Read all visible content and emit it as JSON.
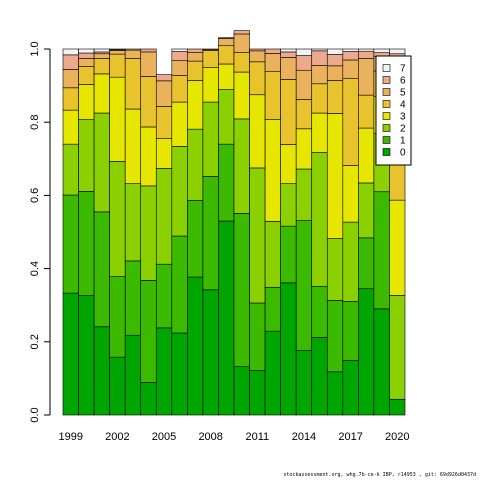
{
  "chart_data": {
    "type": "bar",
    "stacked": true,
    "title": "",
    "xlabel": "",
    "ylabel": "",
    "ylim": [
      0,
      1
    ],
    "y_ticks": [
      "0.0",
      "0.2",
      "0.4",
      "0.6",
      "0.8",
      "1.0"
    ],
    "x_tick_labels": [
      "1999",
      "2002",
      "2005",
      "2008",
      "2011",
      "2014",
      "2017",
      "2020"
    ],
    "categories": [
      "1999",
      "2000",
      "2001",
      "2002",
      "2003",
      "2004",
      "2005",
      "2006",
      "2007",
      "2008",
      "2009",
      "2010",
      "2011",
      "2012",
      "2013",
      "2014",
      "2015",
      "2016",
      "2017",
      "2018",
      "2019",
      "2020"
    ],
    "legend_position": "top-right",
    "series": [
      {
        "name": "0",
        "color": "#00a600",
        "values": [
          0.333,
          0.326,
          0.241,
          0.158,
          0.218,
          0.089,
          0.238,
          0.224,
          0.377,
          0.342,
          0.53,
          0.132,
          0.122,
          0.229,
          0.361,
          0.176,
          0.212,
          0.118,
          0.149,
          0.345,
          0.29,
          0.043
        ]
      },
      {
        "name": "1",
        "color": "#3bba00",
        "values": [
          0.268,
          0.285,
          0.314,
          0.22,
          0.203,
          0.279,
          0.174,
          0.265,
          0.209,
          0.31,
          0.21,
          0.419,
          0.184,
          0.12,
          0.155,
          0.355,
          0.139,
          0.195,
          0.161,
          0.139,
          0.32,
          0.0
        ]
      },
      {
        "name": "2",
        "color": "#8bd000",
        "values": [
          0.139,
          0.196,
          0.27,
          0.315,
          0.211,
          0.258,
          0.262,
          0.245,
          0.195,
          0.203,
          0.149,
          0.258,
          0.369,
          0.18,
          0.116,
          0.141,
          0.366,
          0.169,
          0.217,
          0.15,
          0.16,
          0.284
        ]
      },
      {
        "name": "3",
        "color": "#e6e600",
        "values": [
          0.093,
          0.096,
          0.107,
          0.23,
          0.204,
          0.161,
          0.081,
          0.121,
          0.133,
          0.094,
          0.07,
          0.128,
          0.2,
          0.278,
          0.107,
          0.11,
          0.108,
          0.342,
          0.155,
          0.15,
          0.1,
          0.26
        ]
      },
      {
        "name": "4",
        "color": "#e8c32e",
        "values": [
          0.061,
          0.049,
          0.042,
          0.063,
          0.138,
          0.138,
          0.088,
          0.073,
          0.053,
          0.047,
          0.05,
          0.054,
          0.09,
          0.131,
          0.178,
          0.08,
          0.08,
          0.09,
          0.238,
          0.09,
          0.07,
          0.16
        ]
      },
      {
        "name": "5",
        "color": "#ebb25e",
        "values": [
          0.05,
          0.022,
          0.013,
          0.01,
          0.023,
          0.067,
          0.07,
          0.04,
          0.024,
          0.003,
          0.02,
          0.05,
          0.03,
          0.05,
          0.06,
          0.08,
          0.05,
          0.04,
          0.05,
          0.1,
          0.04,
          0.19
        ]
      },
      {
        "name": "6",
        "color": "#eda98b",
        "values": [
          0.04,
          0.015,
          0.005,
          0.002,
          0.003,
          0.008,
          0.017,
          0.025,
          0.009,
          0.001,
          0.002,
          0.009,
          0.005,
          0.012,
          0.015,
          0.04,
          0.04,
          0.031,
          0.023,
          0.02,
          0.01,
          0.05
        ]
      },
      {
        "name": "7",
        "color": "#f2f2f2",
        "values": [
          0.016,
          0.011,
          0.008,
          0.002,
          0.0,
          0.0,
          0.0,
          0.007,
          0.0,
          0.0,
          0.0,
          0.0,
          0.0,
          0.0,
          0.008,
          0.018,
          0.005,
          0.015,
          0.007,
          0.006,
          0.01,
          0.013
        ]
      }
    ]
  },
  "footer_text": "stockassessment.org, whg.7b-ce-k IBP, r14953 , git: 69d926d0437d"
}
